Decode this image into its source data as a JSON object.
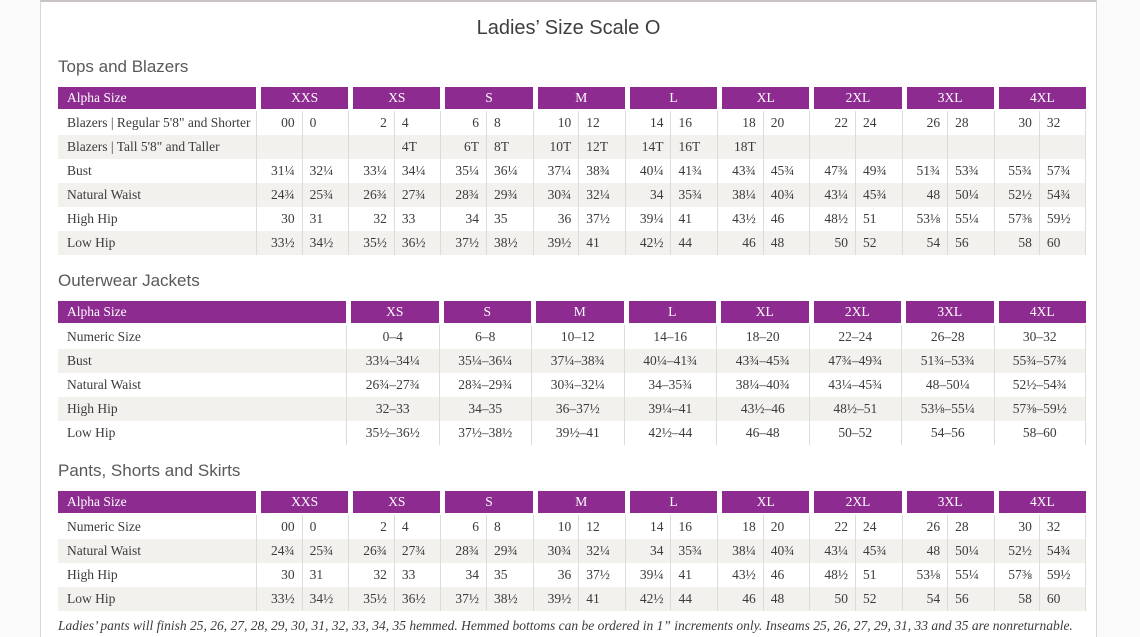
{
  "page": {
    "title": "Ladies’ Size Scale O"
  },
  "colors": {
    "header_purple": "#8e2b90",
    "row_stripe": "#f3f1ee",
    "divider_gray": "#dcdcda",
    "text_dark": "#3b3b3c",
    "heading_gray": "#58595b"
  },
  "tables": [
    {
      "id": "tops-and-blazers",
      "section_title": "Tops and Blazers",
      "label_header": "Alpha Size",
      "paired": true,
      "size_headers": [
        "XXS",
        "XS",
        "S",
        "M",
        "L",
        "XL",
        "2XL",
        "3XL",
        "4XL"
      ],
      "rows": [
        {
          "label": "Blazers  |  Regular 5'8\" and Shorter",
          "values": [
            "00",
            "0",
            "2",
            "4",
            "6",
            "8",
            "10",
            "12",
            "14",
            "16",
            "18",
            "20",
            "22",
            "24",
            "26",
            "28",
            "30",
            "32"
          ]
        },
        {
          "label": "Blazers  |  Tall 5'8\" and Taller",
          "values": [
            "",
            "",
            "",
            "4T",
            "6T",
            "8T",
            "10T",
            "12T",
            "14T",
            "16T",
            "18T",
            "",
            "",
            "",
            "",
            "",
            "",
            ""
          ]
        },
        {
          "label": "Bust",
          "values": [
            "31¼",
            "32¼",
            "33¼",
            "34¼",
            "35¼",
            "36¼",
            "37¼",
            "38¾",
            "40¼",
            "41¾",
            "43¾",
            "45¾",
            "47¾",
            "49¾",
            "51¾",
            "53¾",
            "55¾",
            "57¾"
          ]
        },
        {
          "label": "Natural Waist",
          "values": [
            "24¾",
            "25¾",
            "26¾",
            "27¾",
            "28¾",
            "29¾",
            "30¾",
            "32¼",
            "34",
            "35¾",
            "38¼",
            "40¾",
            "43¼",
            "45¾",
            "48",
            "50¼",
            "52½",
            "54¾"
          ]
        },
        {
          "label": "High Hip",
          "values": [
            "30",
            "31",
            "32",
            "33",
            "34",
            "35",
            "36",
            "37½",
            "39¼",
            "41",
            "43½",
            "46",
            "48½",
            "51",
            "53⅛",
            "55¼",
            "57⅜",
            "59½"
          ]
        },
        {
          "label": "Low Hip",
          "values": [
            "33½",
            "34½",
            "35½",
            "36½",
            "37½",
            "38½",
            "39½",
            "41",
            "42½",
            "44",
            "46",
            "48",
            "50",
            "52",
            "54",
            "56",
            "58",
            "60"
          ]
        }
      ]
    },
    {
      "id": "outerwear-jackets",
      "section_title": "Outerwear Jackets",
      "label_header": "Alpha Size",
      "paired": false,
      "size_headers": [
        "XS",
        "S",
        "M",
        "L",
        "XL",
        "2XL",
        "3XL",
        "4XL"
      ],
      "rows": [
        {
          "label": "Numeric Size",
          "values": [
            "0–4",
            "6–8",
            "10–12",
            "14–16",
            "18–20",
            "22–24",
            "26–28",
            "30–32"
          ]
        },
        {
          "label": "Bust",
          "values": [
            "33¼–34¼",
            "35¼–36¼",
            "37¼–38¾",
            "40¼–41¾",
            "43¾–45¾",
            "47¾–49¾",
            "51¾–53¾",
            "55¾–57¾"
          ]
        },
        {
          "label": "Natural Waist",
          "values": [
            "26¾–27¾",
            "28¾–29¾",
            "30¾–32¼",
            "34–35¾",
            "38¼–40¾",
            "43¼–45¾",
            "48–50¼",
            "52½–54¾"
          ]
        },
        {
          "label": "High Hip",
          "values": [
            "32–33",
            "34–35",
            "36–37½",
            "39¼–41",
            "43½–46",
            "48½–51",
            "53⅛–55¼",
            "57⅜–59½"
          ]
        },
        {
          "label": "Low Hip",
          "values": [
            "35½–36½",
            "37½–38½",
            "39½–41",
            "42½–44",
            "46–48",
            "50–52",
            "54–56",
            "58–60"
          ]
        }
      ]
    },
    {
      "id": "pants-shorts-skirts",
      "section_title": "Pants, Shorts and Skirts",
      "label_header": "Alpha Size",
      "paired": true,
      "size_headers": [
        "XXS",
        "XS",
        "S",
        "M",
        "L",
        "XL",
        "2XL",
        "3XL",
        "4XL"
      ],
      "rows": [
        {
          "label": "Numeric Size",
          "values": [
            "00",
            "0",
            "2",
            "4",
            "6",
            "8",
            "10",
            "12",
            "14",
            "16",
            "18",
            "20",
            "22",
            "24",
            "26",
            "28",
            "30",
            "32"
          ]
        },
        {
          "label": "Natural Waist",
          "values": [
            "24¾",
            "25¾",
            "26¾",
            "27¾",
            "28¾",
            "29¾",
            "30¾",
            "32¼",
            "34",
            "35¾",
            "38¼",
            "40¾",
            "43¼",
            "45¾",
            "48",
            "50¼",
            "52½",
            "54¾"
          ]
        },
        {
          "label": "High Hip",
          "values": [
            "30",
            "31",
            "32",
            "33",
            "34",
            "35",
            "36",
            "37½",
            "39¼",
            "41",
            "43½",
            "46",
            "48½",
            "51",
            "53⅛",
            "55¼",
            "57⅜",
            "59½"
          ]
        },
        {
          "label": "Low Hip",
          "values": [
            "33½",
            "34½",
            "35½",
            "36½",
            "37½",
            "38½",
            "39½",
            "41",
            "42½",
            "44",
            "46",
            "48",
            "50",
            "52",
            "54",
            "56",
            "58",
            "60"
          ]
        }
      ]
    }
  ],
  "footnote": "Ladies’ pants will finish 25, 26, 27, 28, 29, 30, 31, 32, 33, 34, 35 hemmed. Hemmed bottoms can be ordered in 1” increments only. Inseams 25, 26, 27, 29, 31, 33 and 35 are nonreturnable."
}
